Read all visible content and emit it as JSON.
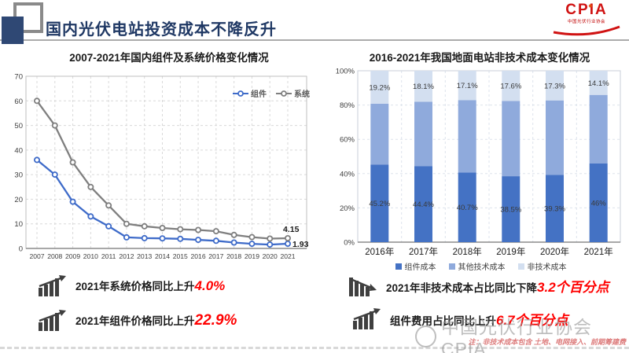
{
  "header": {
    "title": "国内光伏电站投资成本不降反升",
    "logo_text": "CPIA",
    "logo_subtext": "中国光伏行业协会"
  },
  "colors": {
    "title_navy": "#1F3864",
    "accent_red": "#FF0000",
    "logo_red": "#D01212"
  },
  "left_panel": {
    "annotations": [
      {
        "prefix": "2021年系统价格同比上升",
        "value": "4.0%"
      },
      {
        "prefix": "2021年组件价格同比上升",
        "value": "22.9%"
      }
    ]
  },
  "right_panel": {
    "annotations": [
      {
        "prefix": "2021年非技术成本占比同比下降",
        "value": "3.2个百分点"
      },
      {
        "prefix": "组件费用占比同比上升",
        "value": "6.7个百分点"
      }
    ],
    "note": "注：非技术成本包含 土地、电网接入、前期筹建费"
  },
  "watermark": "中国光伏行业协会CPIA",
  "chart_data": [
    {
      "type": "line",
      "title": "2007-2021年国内组件及系统价格变化情况",
      "x": [
        "2007",
        "2008",
        "2009",
        "2010",
        "2011",
        "2012",
        "2013",
        "2014",
        "2015",
        "2016",
        "2017",
        "2018",
        "2019",
        "2020",
        "2021"
      ],
      "series": [
        {
          "name": "组件",
          "color": "#3E6BC9",
          "values": [
            36,
            30,
            19,
            13,
            9,
            4.5,
            4.2,
            4.1,
            3.9,
            3.5,
            3.1,
            2.4,
            1.9,
            1.57,
            1.93
          ],
          "end_label": "1.93",
          "lx": 6,
          "ly": 4
        },
        {
          "name": "系统",
          "color": "#7F7F7F",
          "values": [
            60,
            50,
            35,
            25,
            17.5,
            10,
            9,
            8.3,
            7.8,
            7.5,
            7,
            5.5,
            4.6,
            3.99,
            4.15
          ],
          "end_label": "4.15",
          "lx": -6,
          "ly": -8
        }
      ],
      "ylim": [
        0,
        70
      ],
      "ytick_step": 10,
      "grid": "dashed",
      "legend_position": "top-right-inside"
    },
    {
      "type": "stacked-bar",
      "title": "2016-2021年我国地面电站非技术成本变化情况",
      "categories": [
        "2016年",
        "2017年",
        "2018年",
        "2019年",
        "2020年",
        "2021年"
      ],
      "series": [
        {
          "name": "组件成本",
          "color": "#4472C4",
          "values": [
            45.2,
            44.4,
            40.7,
            38.5,
            39.3,
            46
          ],
          "labels": [
            "45.2%",
            "44.4%",
            "40.7%",
            "38.5%",
            "39.3%",
            "46%"
          ]
        },
        {
          "name": "其他技术成本",
          "color": "#8FAADC",
          "values": [
            35.6,
            37.5,
            42.2,
            43.9,
            43.4,
            39.9
          ]
        },
        {
          "name": "非技术成本",
          "color": "#D3DFF0",
          "values": [
            19.2,
            18.1,
            17.1,
            17.6,
            17.3,
            14.1
          ],
          "labels": [
            "19.2%",
            "18.1%",
            "17.1%",
            "17.6%",
            "17.3%",
            "14.1%"
          ]
        }
      ],
      "ylim": [
        0,
        100
      ],
      "ytick_step": 20,
      "grid": "dashed",
      "legend_position": "bottom"
    }
  ]
}
